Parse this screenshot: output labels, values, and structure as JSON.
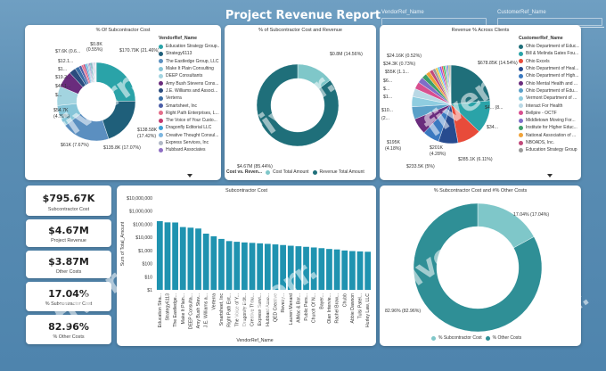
{
  "report_title": "Project Revenue Report",
  "slicers": [
    {
      "label": "VendorRef_Name"
    },
    {
      "label": "CustomerRef_Name"
    }
  ],
  "donut1": {
    "title": "% Of Subcontractor Cost",
    "legend_header": "VendorRef_Name",
    "legend": [
      {
        "name": "Education Strategy Group...",
        "color": "#2aa3a8"
      },
      {
        "name": "Strategy6113",
        "color": "#1f5f7a"
      },
      {
        "name": "The Eastledge Group, LLC",
        "color": "#5b8fc0"
      },
      {
        "name": "Make It Plain Consulting",
        "color": "#86c5d8"
      },
      {
        "name": "DEEP Consultants",
        "color": "#a3d4e0"
      },
      {
        "name": "Amy Bush Stevens Cons...",
        "color": "#6a2c7d"
      },
      {
        "name": "J.E. Williams and Associ...",
        "color": "#2b4c7e"
      },
      {
        "name": "Verterra",
        "color": "#3a6ea5"
      },
      {
        "name": "Smartsheet, Inc",
        "color": "#4c5fa8"
      },
      {
        "name": "Right Path Enterprises, L...",
        "color": "#e46e8a"
      },
      {
        "name": "The Voice of Your Custo...",
        "color": "#c23b6f"
      },
      {
        "name": "Dragonfly Editorial LLC",
        "color": "#3ea0d6"
      },
      {
        "name": "Creative Thought Consul...",
        "color": "#7cb6e0"
      },
      {
        "name": "Express Services, Inc",
        "color": "#b0b8c6"
      },
      {
        "name": "Hubbard Associates",
        "color": "#8f6fc4"
      }
    ],
    "labels": [
      "$0.8K",
      "$7.6K (0.6...",
      "$12.1...",
      "$1...",
      "$19.2...",
      "$47.1...",
      "$...",
      "$54.7K",
      "(4.39%)",
      "$61K (7.67%)",
      "$135.8K (17.07%)",
      "$138.58K",
      "(17.42%)",
      "$170.79K (21.46%)",
      "(0.55%)"
    ]
  },
  "donut2": {
    "title": "% of Subcontractor Cost and Revenue",
    "label_top": "$0.8M (14.56%)",
    "label_bottom": "$4.67M (85.44%)",
    "legend_title": "Cost vs. Reven...",
    "legend": [
      {
        "name": "Cost Total Amount",
        "color": "#7fc7c9"
      },
      {
        "name": "Revenue Total Amount",
        "color": "#1f6f7a"
      }
    ]
  },
  "pie": {
    "title": "Revenue % Across Clients",
    "legend_header": "CustomerRef_Name",
    "legend": [
      {
        "name": "Ohio Department of Educ...",
        "color": "#1f6f7a"
      },
      {
        "name": "Bill & Melinda Gates Fou...",
        "color": "#2aa3a8"
      },
      {
        "name": "Ohio Excels",
        "color": "#e84b3a"
      },
      {
        "name": "Ohio Department of Heal...",
        "color": "#274b8f"
      },
      {
        "name": "Ohio Department of High...",
        "color": "#3a79c0"
      },
      {
        "name": "Ohio Mental Health and ...",
        "color": "#6a2c7d"
      },
      {
        "name": "Ohio Department of Edu...",
        "color": "#5aa0c8"
      },
      {
        "name": "Vermont Department of ...",
        "color": "#8fcde0"
      },
      {
        "name": "Interact For Health",
        "color": "#b9d8e5"
      },
      {
        "name": "Bellpire - OCTF",
        "color": "#d84f8f"
      },
      {
        "name": "Middletown Moving For...",
        "color": "#7f6ec8"
      },
      {
        "name": "Institute for Higher Educ...",
        "color": "#3d9f6b"
      },
      {
        "name": "National Association of ...",
        "color": "#f0a33a"
      },
      {
        "name": "NBOADS, Inc.",
        "color": "#c14a7a"
      },
      {
        "name": "Education Strategy Group",
        "color": "#9b9b9b"
      }
    ],
    "labels": [
      "$24.16K (0.52%)",
      "$34.3K (0.73%)",
      "$55K (1.1...",
      "$6...",
      "$...",
      "$1...",
      "$10...",
      "(2...",
      "$195K",
      "(4.18%)",
      "$201K",
      "(4.28%)",
      "$233.5K (5%)",
      "$285.1K (6.11%)",
      "$34...",
      "$4... (8...",
      "$678.85K (14.54%)"
    ]
  },
  "kpis": [
    {
      "value": "$795.67K",
      "caption": "Subcontractor Cost"
    },
    {
      "value": "$4.67M",
      "caption": "Project Revenue"
    },
    {
      "value": "$3.87M",
      "caption": "Other Costs"
    },
    {
      "value": "17.04%",
      "caption": "% Subcontractor Cost"
    },
    {
      "value": "82.96%",
      "caption": "% Other Costs"
    }
  ],
  "bar_chart": {
    "title": "Subcontractor Cost",
    "xlabel": "VendorRef_Name",
    "ylabel": "Sum of Total_Amount",
    "yticks": [
      "$10,000,000",
      "$1,000,000",
      "$100,000",
      "$10,000",
      "$1,000",
      "$100",
      "$10",
      "$1"
    ]
  },
  "chart_data": {
    "type": "bar",
    "title": "Subcontractor Cost",
    "xlabel": "VendorRef_Name",
    "ylabel": "Sum of Total_Amount",
    "log_scale": true,
    "ylim": [
      1,
      10000000
    ],
    "categories": [
      "Education Stra...",
      "Strategy6113",
      "The Eastledge...",
      "Make It Plain...",
      "DEEP Consulta...",
      "Amy Bush Stev...",
      "J.E. Williams a...",
      "Verterra",
      "Smartsheet, Inc",
      "Right Path Ent...",
      "The Voice of Y...",
      "Dragonfly Edit...",
      "Creative Thou...",
      "Express Servi...",
      "Hubbard Asso...",
      "QED Creative",
      "Revelry...",
      "Lauren Menard",
      "AlMac & Bor...",
      "Public Pers...",
      "Church Of N...",
      "Bayer...",
      "Olan Intervie...",
      "Rachel Brow...",
      "Chubb",
      "Abbie Dawson",
      "Tulsi Patel...",
      "Hurley Law, LLC"
    ],
    "values": [
      170790,
      138580,
      135800,
      61000,
      54700,
      47100,
      19200,
      12100,
      7600,
      5200,
      4600,
      4100,
      3800,
      3500,
      3200,
      2900,
      2600,
      2300,
      2100,
      1900,
      1700,
      1500,
      1300,
      1200,
      1000,
      900,
      850,
      800
    ]
  },
  "donut3": {
    "title": "% Subcontractor Cost and #% Other Costs",
    "label_top": "17.04% (17.04%)",
    "label_bottom": "82.96% (82.96%)",
    "legend": [
      {
        "name": "% Subcontractor Cost",
        "color": "#7fc7c9"
      },
      {
        "name": "% Other Costs",
        "color": "#2f8f96"
      }
    ]
  },
  "watermark": "fiverr."
}
